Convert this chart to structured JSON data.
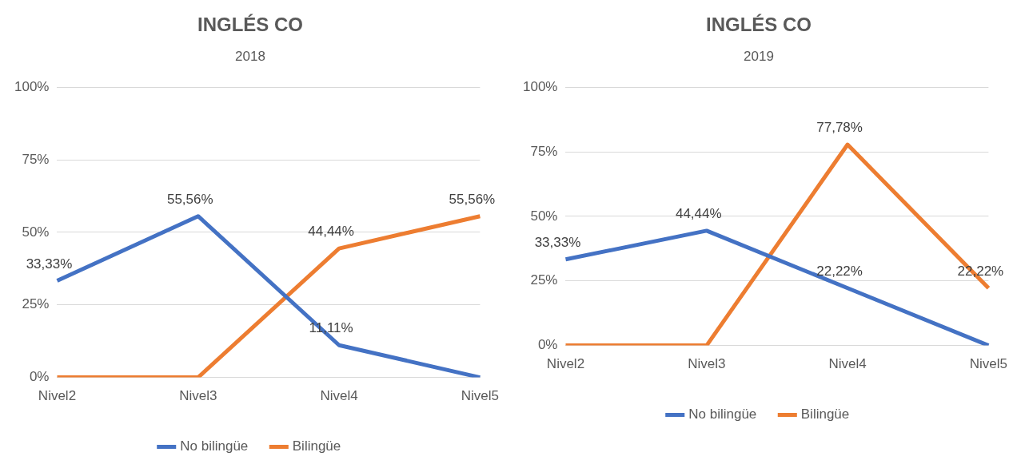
{
  "chart_data": [
    {
      "type": "line",
      "title": "INGLÉS CO",
      "subtitle": "2018",
      "categories": [
        "Nivel2",
        "Nivel3",
        "Nivel4",
        "Nivel5"
      ],
      "ylim": [
        0,
        100
      ],
      "yticks": [
        {
          "value": 0,
          "label": "0%"
        },
        {
          "value": 25,
          "label": "25%"
        },
        {
          "value": 50,
          "label": "50%"
        },
        {
          "value": 75,
          "label": "75%"
        },
        {
          "value": 100,
          "label": "100%"
        }
      ],
      "grid": "y",
      "legend": "bottom",
      "series": [
        {
          "name": "No bilingüe",
          "color": "#4472c4",
          "values": [
            33.33,
            55.56,
            11.11,
            0
          ],
          "value_labels": [
            "33,33%",
            "55,56%",
            "11,11%",
            null
          ]
        },
        {
          "name": "Bilingüe",
          "color": "#ed7d31",
          "values": [
            0,
            0,
            44.44,
            55.56
          ],
          "value_labels": [
            null,
            null,
            "44,44%",
            "55,56%"
          ]
        }
      ]
    },
    {
      "type": "line",
      "title": "INGLÉS CO",
      "subtitle": "2019",
      "categories": [
        "Nivel2",
        "Nivel3",
        "Nivel4",
        "Nivel5"
      ],
      "ylim": [
        0,
        100
      ],
      "yticks": [
        {
          "value": 0,
          "label": "0%"
        },
        {
          "value": 25,
          "label": "25%"
        },
        {
          "value": 50,
          "label": "50%"
        },
        {
          "value": 75,
          "label": "75%"
        },
        {
          "value": 100,
          "label": "100%"
        }
      ],
      "grid": "y",
      "legend": "bottom",
      "series": [
        {
          "name": "No bilingüe",
          "color": "#4472c4",
          "values": [
            33.33,
            44.44,
            22.22,
            0
          ],
          "value_labels": [
            "33,33%",
            "44,44%",
            "22,22%",
            null
          ]
        },
        {
          "name": "Bilingüe",
          "color": "#ed7d31",
          "values": [
            0,
            0,
            77.78,
            22.22
          ],
          "value_labels": [
            null,
            null,
            "77,78%",
            "22,22%"
          ]
        }
      ]
    }
  ]
}
